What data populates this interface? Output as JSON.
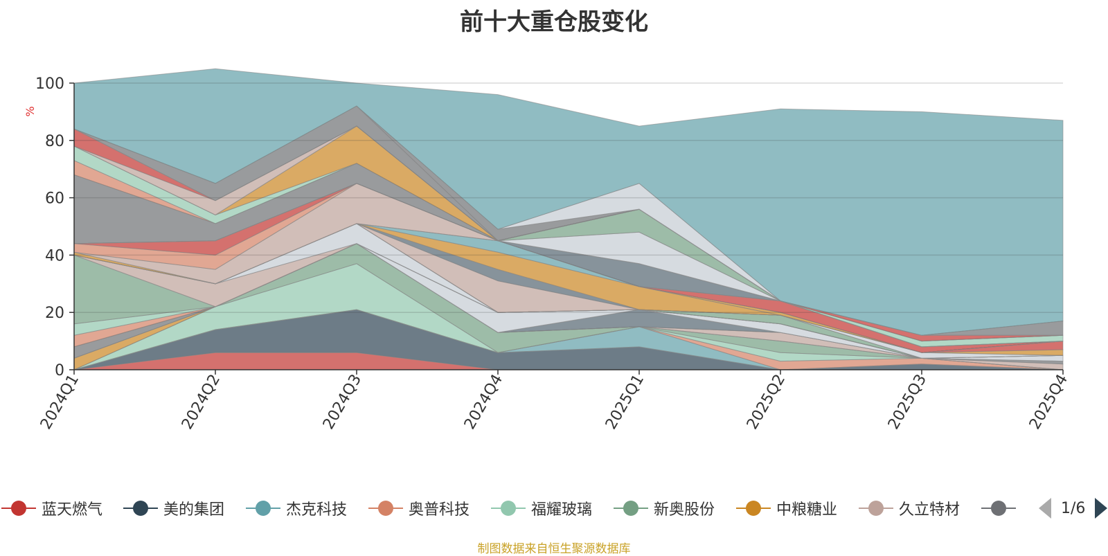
{
  "title": "前十大重仓股变化",
  "source_note": "制图数据来自恒生聚源数据库",
  "pager": {
    "text": "1/6"
  },
  "chart_data": {
    "type": "area",
    "stacked": true,
    "title": "前十大重仓股变化",
    "ylabel": "%",
    "ylim": [
      0,
      100
    ],
    "yticks": [
      0,
      20,
      40,
      60,
      80,
      100
    ],
    "grid": true,
    "x": [
      "2024Q1",
      "2024Q2",
      "2024Q3",
      "2024Q4",
      "2025Q1",
      "2025Q2",
      "2025Q3",
      "2025Q4"
    ],
    "series": [
      {
        "name": "蓝天燃气",
        "color": "#c23531",
        "values": [
          0,
          6,
          6,
          0,
          0,
          0,
          0,
          0
        ]
      },
      {
        "name": "美的集团",
        "color": "#2f4554",
        "values": [
          0,
          8,
          15,
          6,
          8,
          0,
          2,
          0
        ]
      },
      {
        "name": "杰克科技",
        "color": "#61a0a8",
        "values": [
          0,
          0,
          0,
          0,
          7,
          0,
          0,
          0
        ]
      },
      {
        "name": "奥普科技",
        "color": "#d48265",
        "values": [
          0,
          0,
          0,
          0,
          0,
          3,
          2,
          0
        ]
      },
      {
        "name": "福耀玻璃",
        "color": "#91c7ae",
        "values": [
          0,
          8,
          16,
          0,
          0,
          3,
          0,
          0
        ]
      },
      {
        "name": "新奥股份",
        "color": "#749f83",
        "values": [
          0,
          0,
          7,
          7,
          0,
          4,
          0,
          0
        ]
      },
      {
        "name": "中粮糖业",
        "color": "#ca8622",
        "values": [
          4,
          0,
          0,
          0,
          0,
          0,
          0,
          0
        ]
      },
      {
        "name": "久立特材",
        "color": "#bda29a",
        "values": [
          0,
          0,
          0,
          0,
          0,
          3,
          0,
          2
        ]
      },
      {
        "name": "",
        "color": "#6e7074",
        "values": [
          4,
          0,
          0,
          0,
          0,
          0,
          0,
          1
        ]
      },
      {
        "name": "",
        "color": "#546570",
        "values": [
          0,
          0,
          0,
          0,
          6,
          0,
          0,
          0
        ]
      },
      {
        "name": "",
        "color": "#c4ccd3",
        "values": [
          0,
          0,
          0,
          7,
          0,
          3,
          0,
          2
        ]
      },
      {
        "name": "",
        "color": "#61a0a8",
        "values": [
          0,
          0,
          0,
          0,
          0,
          0,
          0,
          0
        ]
      },
      {
        "name": "",
        "color": "#d48265",
        "values": [
          4,
          0,
          0,
          0,
          0,
          0,
          0,
          0
        ]
      },
      {
        "name": "",
        "color": "#91c7ae",
        "values": [
          4,
          0,
          0,
          0,
          0,
          0,
          0,
          0
        ]
      },
      {
        "name": "",
        "color": "#749f83",
        "values": [
          24,
          0,
          0,
          0,
          0,
          3,
          0,
          0
        ]
      },
      {
        "name": "",
        "color": "#bda29a",
        "values": [
          0,
          8,
          0,
          0,
          0,
          0,
          0,
          0
        ]
      },
      {
        "name": "",
        "color": "#c4ccd3",
        "values": [
          0,
          0,
          7,
          0,
          0,
          0,
          2,
          0
        ]
      },
      {
        "name": "",
        "color": "#ca8622",
        "values": [
          0,
          0,
          0,
          0,
          0,
          0,
          0,
          2
        ]
      },
      {
        "name": "",
        "color": "#c23531",
        "values": [
          0,
          0,
          0,
          0,
          0,
          0,
          0,
          3
        ]
      },
      {
        "name": "",
        "color": "#bda29a",
        "values": [
          0,
          0,
          0,
          11,
          0,
          0,
          0,
          0
        ]
      },
      {
        "name": "",
        "color": "#546570",
        "values": [
          0,
          0,
          0,
          4,
          0,
          0,
          0,
          0
        ]
      },
      {
        "name": "",
        "color": "#ca8622",
        "values": [
          0,
          0,
          0,
          6,
          8,
          0,
          0,
          0
        ]
      },
      {
        "name": "",
        "color": "#61a0a8",
        "values": [
          0,
          0,
          0,
          4,
          0,
          0,
          0,
          0
        ]
      },
      {
        "name": "",
        "color": "#ca8622",
        "values": [
          1,
          0,
          0,
          0,
          0,
          1,
          0,
          0
        ]
      },
      {
        "name": "",
        "color": "#bda29a",
        "values": [
          0,
          5,
          14,
          0,
          0,
          0,
          0,
          0
        ]
      },
      {
        "name": "",
        "color": "#d48265",
        "values": [
          3,
          5,
          0,
          0,
          0,
          0,
          0,
          0
        ]
      },
      {
        "name": "",
        "color": "#c23531",
        "values": [
          0,
          5,
          0,
          0,
          0,
          4,
          2,
          0
        ]
      },
      {
        "name": "",
        "color": "#546570",
        "values": [
          0,
          0,
          0,
          0,
          8,
          0,
          0,
          0
        ]
      },
      {
        "name": "",
        "color": "#6e7074",
        "values": [
          24,
          6,
          7,
          0,
          0,
          0,
          0,
          0
        ]
      },
      {
        "name": "",
        "color": "#c4ccd3",
        "values": [
          0,
          0,
          0,
          0,
          11,
          0,
          0,
          0
        ]
      },
      {
        "name": "",
        "color": "#749f83",
        "values": [
          0,
          0,
          0,
          0,
          8,
          0,
          0,
          0
        ]
      },
      {
        "name": "",
        "color": "#d48265",
        "values": [
          5,
          0,
          0,
          0,
          0,
          0,
          0,
          0
        ]
      },
      {
        "name": "",
        "color": "#91c7ae",
        "values": [
          5,
          3,
          0,
          0,
          0,
          0,
          2,
          2
        ]
      },
      {
        "name": "",
        "color": "#ca8622",
        "values": [
          0,
          0,
          13,
          0,
          0,
          0,
          0,
          0
        ]
      },
      {
        "name": "",
        "color": "#bda29a",
        "values": [
          0,
          5,
          0,
          0,
          0,
          0,
          0,
          0
        ]
      },
      {
        "name": "",
        "color": "#c23531",
        "values": [
          6,
          0,
          0,
          0,
          0,
          0,
          2,
          0
        ]
      },
      {
        "name": "",
        "color": "#6e7074",
        "values": [
          0,
          6,
          7,
          0,
          0,
          0,
          0,
          5
        ]
      },
      {
        "name": "",
        "color": "#6e7074",
        "values": [
          0,
          0,
          0,
          4,
          0,
          0,
          0,
          0
        ]
      },
      {
        "name": "",
        "color": "#c4ccd3",
        "values": [
          0,
          0,
          0,
          0,
          9,
          0,
          0,
          0
        ]
      },
      {
        "name": "",
        "color": "#61a0a8",
        "values": [
          16,
          40,
          8,
          47,
          20,
          67,
          78,
          70
        ]
      }
    ]
  }
}
